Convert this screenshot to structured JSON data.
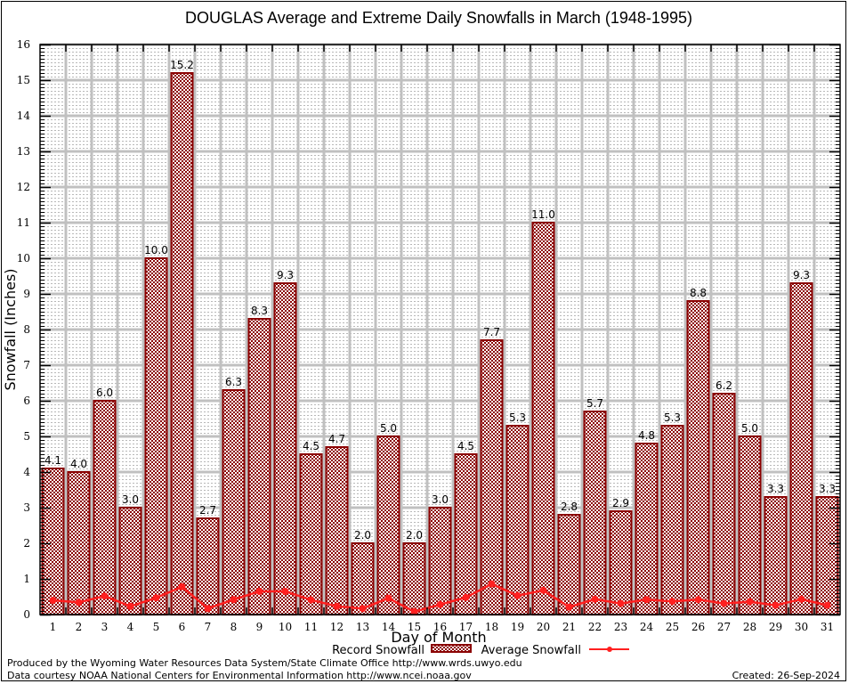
{
  "chart_data": {
    "type": "bar",
    "title": "DOUGLAS Average and Extreme Daily Snowfalls in March (1948-1995)",
    "xlabel": "Day of Month",
    "ylabel": "Snowfall (Inches)",
    "ylim": [
      0,
      16
    ],
    "yticks": [
      0,
      1,
      2,
      3,
      4,
      5,
      6,
      7,
      8,
      9,
      10,
      11,
      12,
      13,
      14,
      15,
      16
    ],
    "grid": true,
    "categories": [
      "1",
      "2",
      "3",
      "4",
      "5",
      "6",
      "7",
      "8",
      "9",
      "10",
      "11",
      "12",
      "13",
      "14",
      "15",
      "16",
      "17",
      "18",
      "19",
      "20",
      "21",
      "22",
      "23",
      "24",
      "25",
      "26",
      "27",
      "28",
      "29",
      "30",
      "31"
    ],
    "series": [
      {
        "name": "Record Snowfall",
        "type": "bar",
        "color": "#8b0000",
        "values": [
          4.1,
          4.0,
          6.0,
          3.0,
          10.0,
          15.2,
          2.7,
          6.3,
          8.3,
          9.3,
          4.5,
          4.7,
          2.0,
          5.0,
          2.0,
          3.0,
          4.5,
          7.7,
          5.3,
          11.0,
          2.8,
          5.7,
          2.9,
          4.8,
          5.3,
          8.8,
          6.2,
          5.0,
          3.3,
          9.3,
          3.3
        ],
        "labels": [
          "4.1",
          "4.0",
          "6.0",
          "3.0",
          "10.0",
          "15.2",
          "2.7",
          "6.3",
          "8.3",
          "9.3",
          "4.5",
          "4.7",
          "2.0",
          "5.0",
          "2.0",
          "3.0",
          "4.5",
          "7.7",
          "5.3",
          "11.0",
          "2.8",
          "5.7",
          "2.9",
          "4.8",
          "5.3",
          "8.8",
          "6.2",
          "5.0",
          "3.3",
          "9.3",
          "3.3"
        ]
      },
      {
        "name": "Average Snowfall",
        "type": "line",
        "color": "#ff2020",
        "values": [
          0.4,
          0.34,
          0.52,
          0.23,
          0.47,
          0.78,
          0.17,
          0.42,
          0.65,
          0.65,
          0.41,
          0.23,
          0.17,
          0.46,
          0.08,
          0.28,
          0.48,
          0.86,
          0.53,
          0.68,
          0.21,
          0.43,
          0.31,
          0.42,
          0.37,
          0.42,
          0.31,
          0.36,
          0.26,
          0.43,
          0.26
        ]
      }
    ],
    "legend": {
      "placement": "bottom-center",
      "entries": [
        "Record Snowfall",
        "Average Snowfall"
      ]
    }
  },
  "footer": {
    "credit_line_1": "Produced by the Wyoming Water Resources Data System/State Climate Office http://www.wrds.uwyo.edu",
    "credit_line_2": "Data courtesy NOAA National Centers for Environmental Information http://www.ncei.noaa.gov",
    "created": "Created:  26-Sep-2024"
  }
}
